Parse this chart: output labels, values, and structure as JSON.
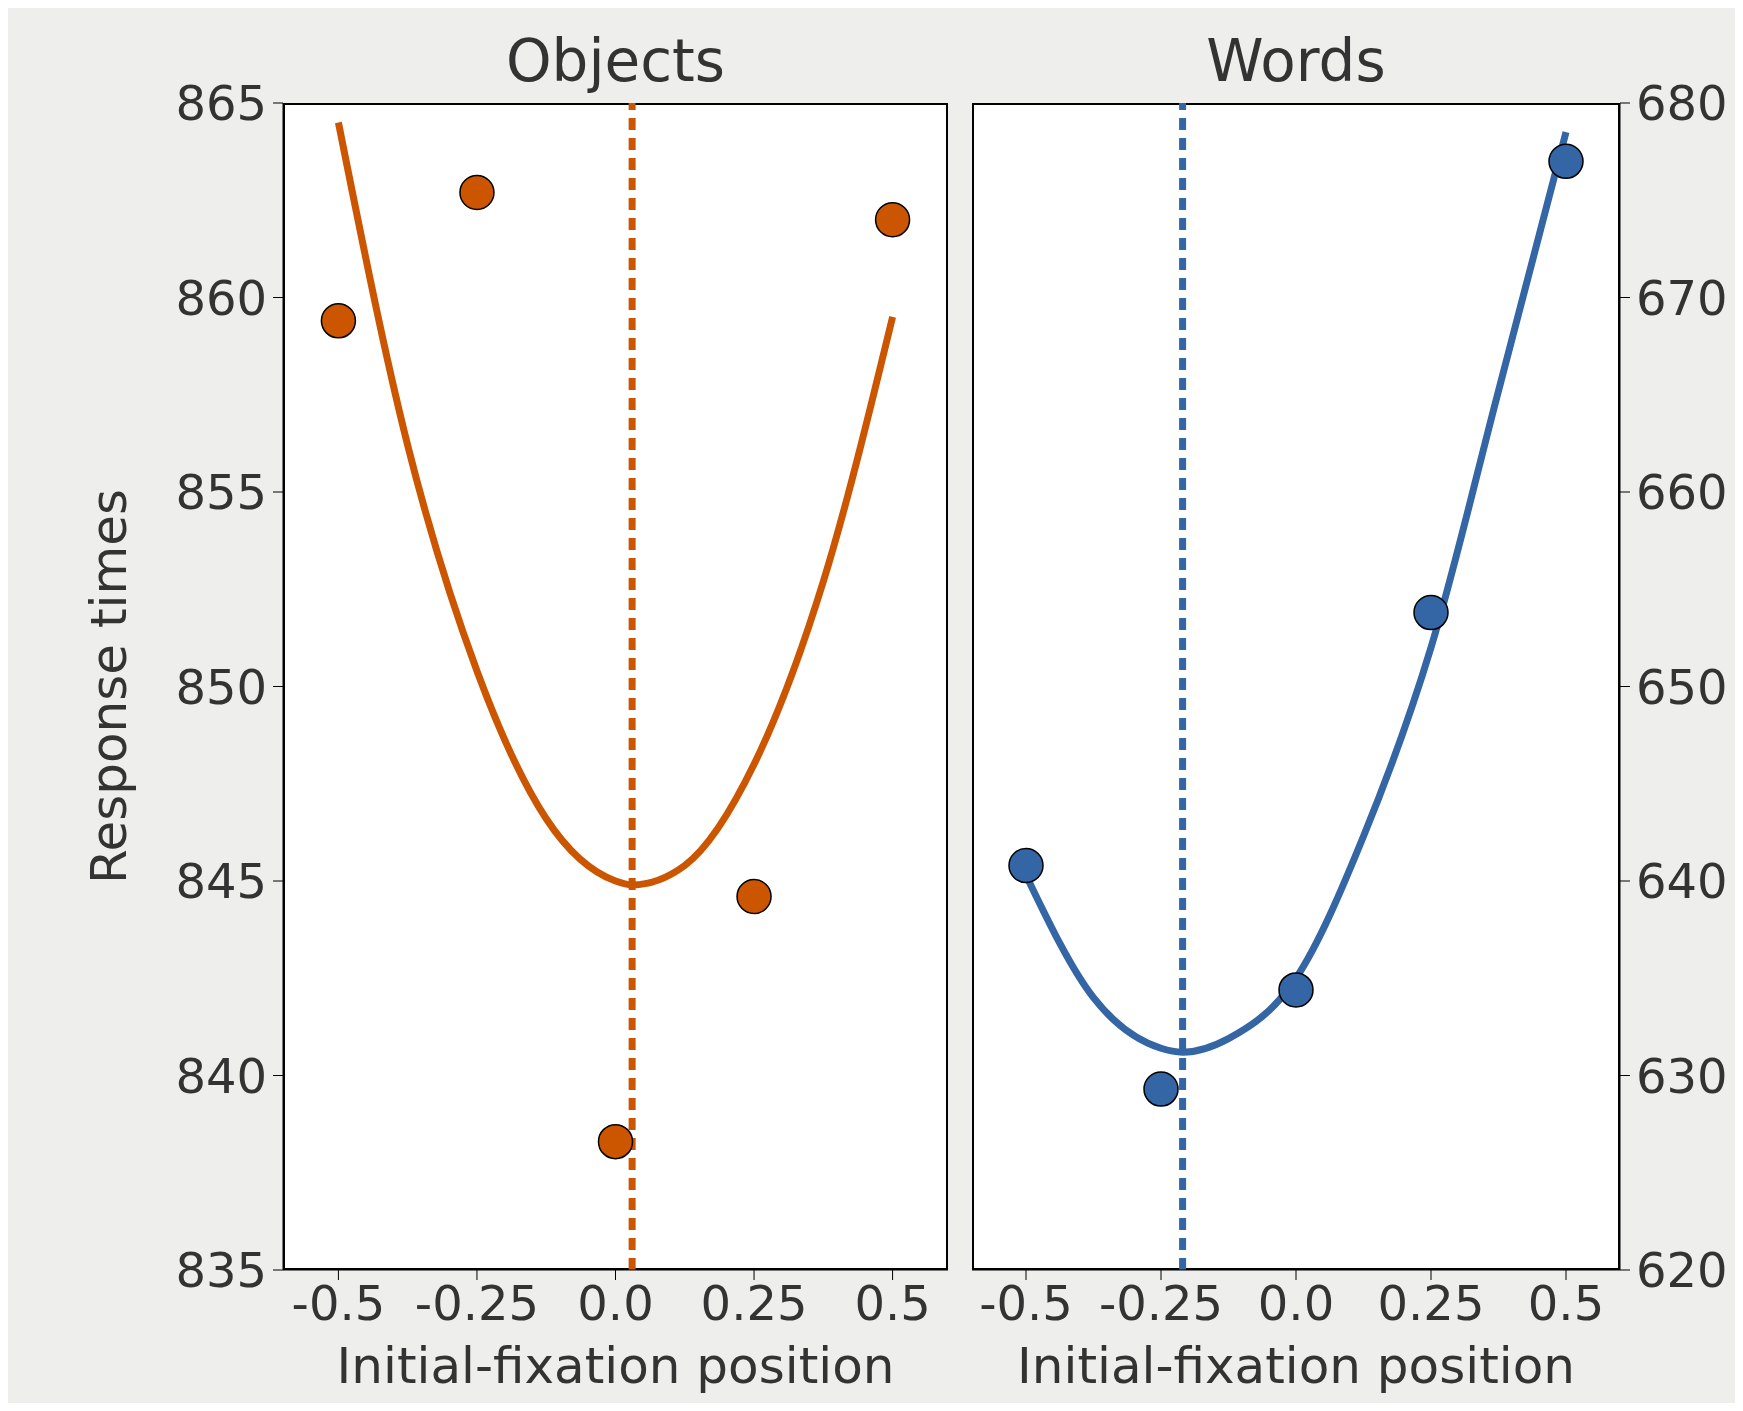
{
  "chart_data": [
    {
      "type": "scatter",
      "title": "Objects",
      "xlabel": "Initial-fixation position",
      "ylabel": "Response times",
      "xlim": [
        -0.6,
        0.6
      ],
      "xticks": [
        -0.5,
        -0.25,
        {
          "value": 0,
          "label": "0.0"
        },
        0.25,
        0.5
      ],
      "ylim": [
        835,
        865
      ],
      "yticks": [
        835,
        840,
        845,
        850,
        855,
        860,
        865
      ],
      "grid": false,
      "series": [
        {
          "type": "scatter",
          "marker": "circle",
          "color": "#cc5500",
          "x": [
            -0.5,
            -0.25,
            0,
            0.25,
            0.5
          ],
          "values": [
            859.4,
            862.7,
            838.3,
            844.6,
            862.0
          ]
        },
        {
          "type": "line",
          "marker": "none",
          "line_style": "solid",
          "color": "#cc5500",
          "x": [
            -0.5,
            -0.375,
            -0.25,
            -0.125,
            0,
            0.03,
            0.125,
            0.25,
            0.375,
            0.5
          ],
          "values": [
            864.5,
            856.2,
            850.4,
            846.6,
            845.0,
            844.9,
            845.4,
            848.0,
            852.7,
            859.5
          ]
        }
      ],
      "ref_lines": [
        {
          "axis": "x",
          "value": 0.03,
          "color": "#cc5500",
          "line_style": "dashed"
        }
      ]
    },
    {
      "type": "scatter",
      "title": "Words",
      "xlabel": "Initial-fixation position",
      "xlim": [
        -0.6,
        0.6
      ],
      "xticks": [
        -0.5,
        -0.25,
        {
          "value": 0,
          "label": "0.0"
        },
        0.25,
        0.5
      ],
      "y2lim": [
        620,
        680
      ],
      "y2ticks": [
        620,
        630,
        640,
        650,
        660,
        670,
        680
      ],
      "grid": false,
      "series": [
        {
          "type": "scatter",
          "axis": "y2",
          "marker": "circle",
          "color": "#3465a4",
          "x": [
            -0.5,
            -0.25,
            0,
            0.25,
            0.5
          ],
          "values": [
            640.8,
            629.3,
            634.4,
            653.8,
            677.0
          ]
        },
        {
          "type": "line",
          "axis": "y2",
          "marker": "none",
          "line_style": "solid",
          "color": "#3465a4",
          "x": [
            -0.5,
            -0.375,
            -0.25,
            -0.21,
            -0.125,
            0,
            0.125,
            0.25,
            0.375,
            0.5
          ],
          "values": [
            640.3,
            634.0,
            631.4,
            631.2,
            631.9,
            635.0,
            642.3,
            652.0,
            665.2,
            678.5
          ]
        }
      ],
      "ref_lines": [
        {
          "axis": "x",
          "value": -0.21,
          "color": "#3465a4",
          "line_style": "dashed"
        }
      ]
    }
  ]
}
